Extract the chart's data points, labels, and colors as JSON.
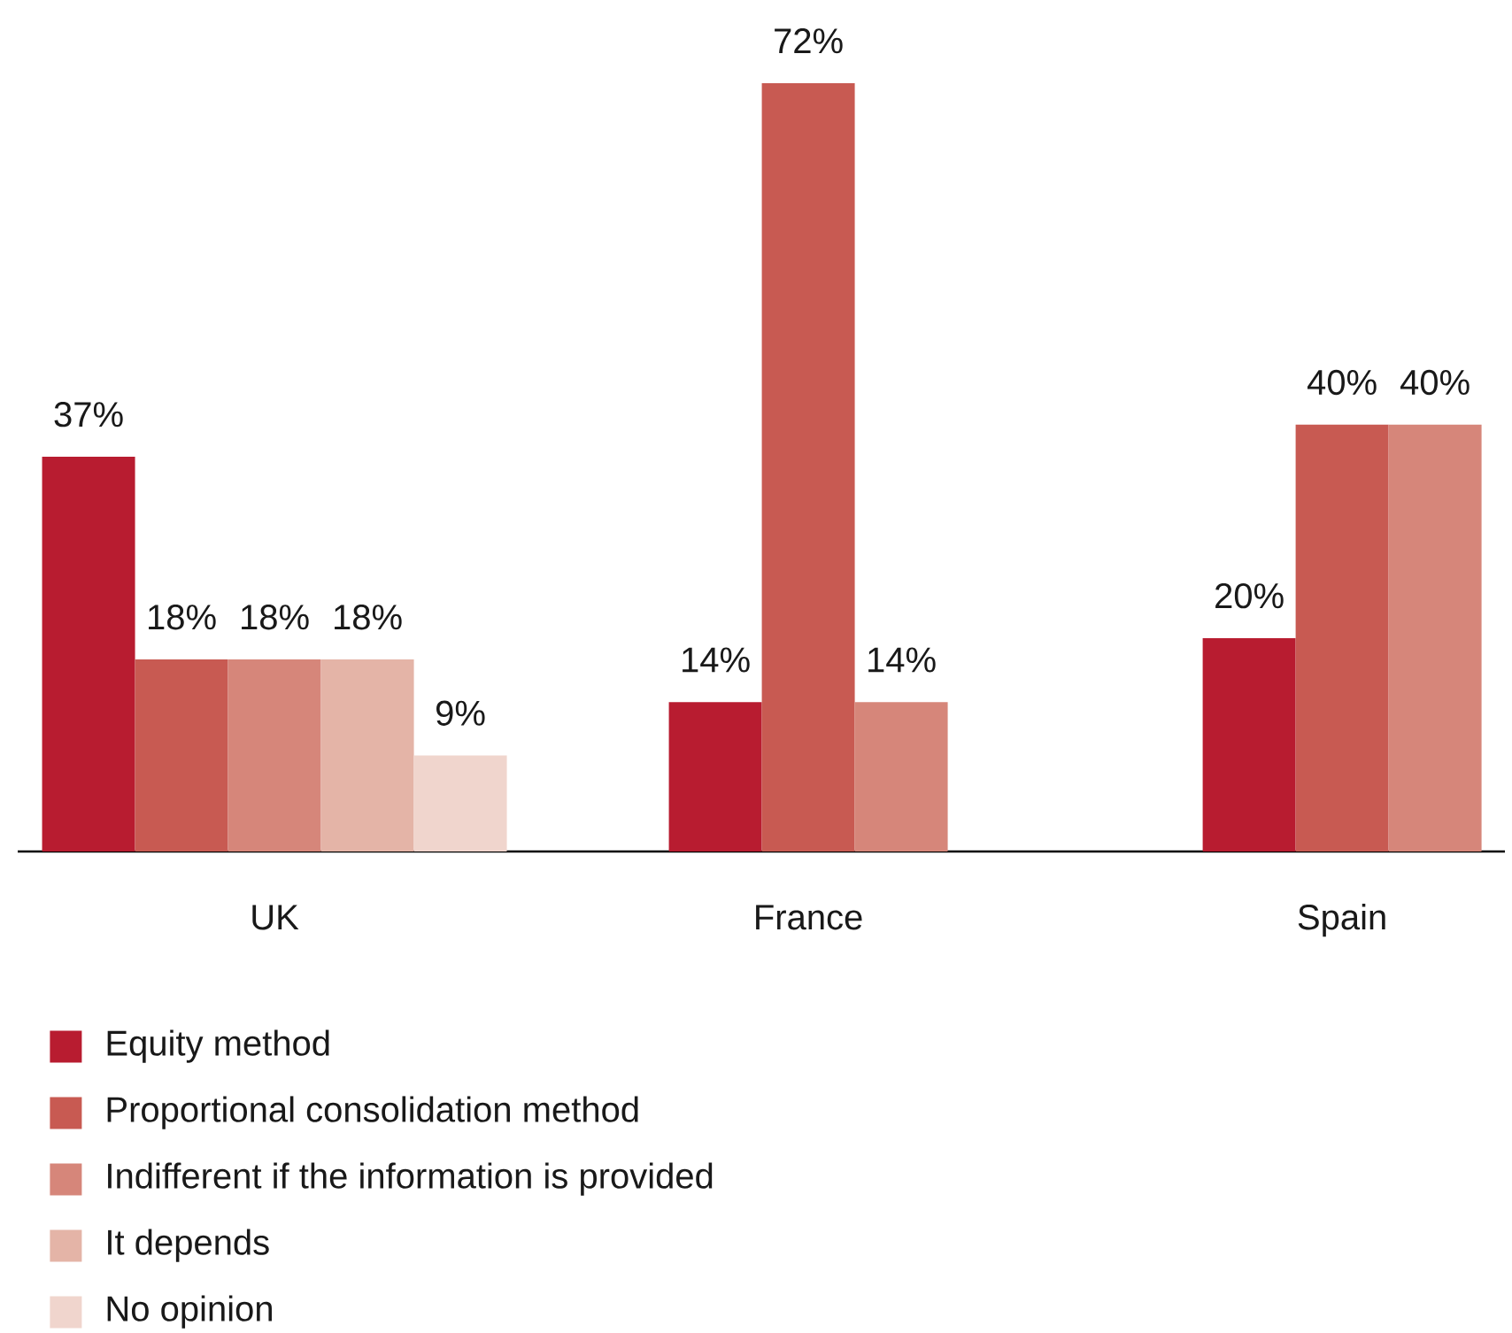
{
  "chart_data": {
    "type": "bar",
    "categories": [
      "UK",
      "France",
      "Spain"
    ],
    "series": [
      {
        "name": "Equity method",
        "color": "#b81c30",
        "values": [
          37,
          14,
          20
        ],
        "value_labels": [
          "37%",
          "14%",
          "20%"
        ]
      },
      {
        "name": "Proportional consolidation method",
        "color": "#c85a52",
        "values": [
          18,
          72,
          40
        ],
        "value_labels": [
          "18%",
          "72%",
          "40%"
        ]
      },
      {
        "name": "Indifferent if the information is provided",
        "color": "#d6867a",
        "values": [
          18,
          14,
          40
        ],
        "value_labels": [
          "18%",
          "14%",
          "40%"
        ]
      },
      {
        "name": "It depends",
        "color": "#e4b4a7",
        "values": [
          18,
          null,
          null
        ],
        "value_labels": [
          "18%",
          null,
          null
        ]
      },
      {
        "name": "No opinion",
        "color": "#f0d5cd",
        "values": [
          9,
          null,
          null
        ],
        "value_labels": [
          "9%",
          null,
          null
        ]
      }
    ],
    "tick_labels": "x",
    "legend": "bottom"
  }
}
